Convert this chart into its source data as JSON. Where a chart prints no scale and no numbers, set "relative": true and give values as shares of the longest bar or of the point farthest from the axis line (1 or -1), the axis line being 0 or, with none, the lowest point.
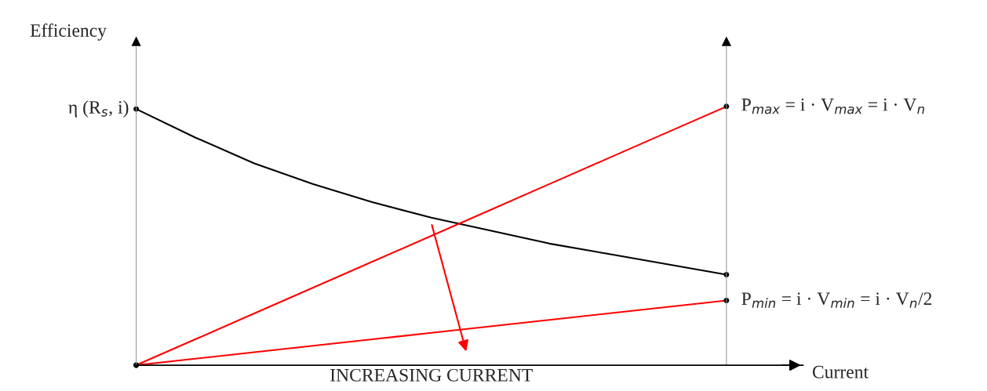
{
  "chart_data": {
    "type": "line",
    "relative": true,
    "ylabel": "Efficiency",
    "xlabel": "Current",
    "categories": [
      null,
      null,
      null,
      null,
      null,
      null,
      null,
      null,
      null,
      null,
      null
    ],
    "series": [
      {
        "color": "#000000",
        "values": [
          0.99,
          0.88,
          0.78,
          0.7,
          0.63,
          0.57,
          0.52,
          0.47,
          0.43,
          0.39,
          0.35
        ]
      },
      {
        "color": "#ff0000",
        "values": [
          0,
          0.1,
          0.2,
          0.3,
          0.4,
          0.5,
          0.6,
          0.7,
          0.8,
          0.9,
          1
        ]
      },
      {
        "color": "#ff0000",
        "values": [
          0,
          0.025,
          0.05,
          0.075,
          0.1,
          0.125,
          0.15,
          0.175,
          0.2,
          0.225,
          0.25
        ]
      }
    ],
    "annotations": [
      "η (R$_{s}$, i)",
      "P$_{max}$ = i · V$_{max}$ = i · V$_{n}$",
      "P$_{min}$ = i · V$_{min}$ = i · V$_{n}$/2",
      "INCREASING CURRENT"
    ]
  }
}
